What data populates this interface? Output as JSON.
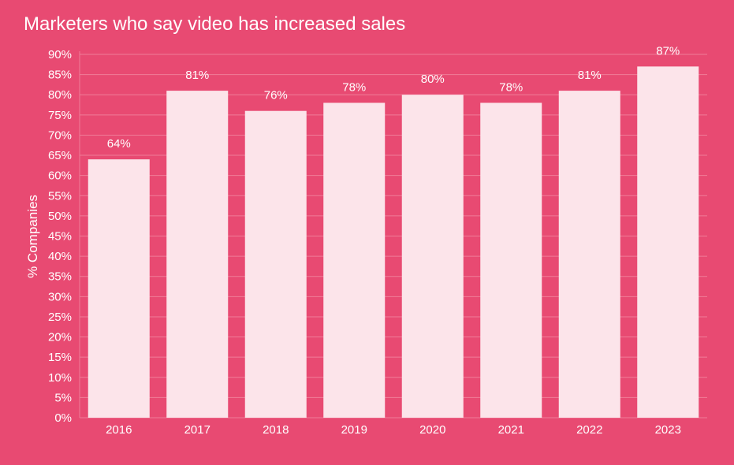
{
  "colors": {
    "background": "#E84A72",
    "bar": "#FCE4EA",
    "gridline": "#F07C98",
    "text": "#FFFFFF"
  },
  "chart_data": {
    "type": "bar",
    "title": "Marketers who say video has increased sales",
    "xlabel": "",
    "ylabel": "% Companies",
    "categories": [
      "2016",
      "2017",
      "2018",
      "2019",
      "2020",
      "2021",
      "2022",
      "2023"
    ],
    "values": [
      64,
      81,
      76,
      78,
      80,
      78,
      81,
      87
    ],
    "data_labels": [
      "64%",
      "81%",
      "76%",
      "78%",
      "80%",
      "78%",
      "81%",
      "87%"
    ],
    "ylim": [
      0,
      90
    ],
    "y_ticks": [
      "0%",
      "5%",
      "10%",
      "15%",
      "20%",
      "25%",
      "30%",
      "35%",
      "40%",
      "45%",
      "50%",
      "55%",
      "60%",
      "65%",
      "70%",
      "75%",
      "80%",
      "85%",
      "90%"
    ],
    "y_tick_values": [
      0,
      5,
      10,
      15,
      20,
      25,
      30,
      35,
      40,
      45,
      50,
      55,
      60,
      65,
      70,
      75,
      80,
      85,
      90
    ],
    "grid": true,
    "legend": "none"
  }
}
